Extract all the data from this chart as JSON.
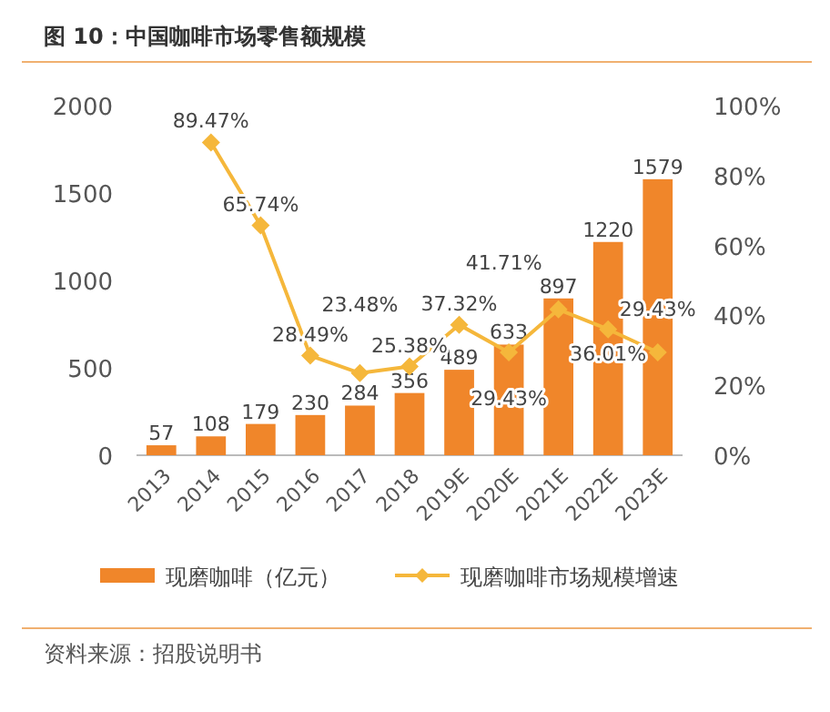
{
  "chart_data": {
    "type": "bar",
    "title": "图 10：中国咖啡市场零售额规模",
    "categories": [
      "2013",
      "2014",
      "2015",
      "2016",
      "2017",
      "2018",
      "2019E",
      "2020E",
      "2021E",
      "2022E",
      "2023E"
    ],
    "series": [
      {
        "name": "现磨咖啡（亿元）",
        "color": "#f0862a",
        "values": [
          57,
          108,
          179,
          230,
          284,
          356,
          489,
          633,
          897,
          1220,
          1579
        ],
        "value_labels": [
          "57",
          "108",
          "179",
          "230",
          "284",
          "356",
          "489",
          "633",
          "897",
          "1220",
          "1579"
        ]
      },
      {
        "name": "现磨咖啡市场规模增速",
        "type": "line",
        "axis": "y2",
        "color": "#f5b73b",
        "marker": "diamond",
        "line_style": "solid",
        "values": [
          null,
          89.47,
          65.74,
          28.49,
          23.48,
          25.38,
          37.32,
          29.43,
          41.71,
          36.01,
          29.43
        ],
        "value_labels": [
          null,
          "89.47%",
          "65.74%",
          "28.49%",
          "23.48%",
          "25.38%",
          "37.32%",
          "29.43%",
          "41.71%",
          "36.01%",
          "29.43%"
        ]
      }
    ],
    "ylim": [
      0,
      2000
    ],
    "yticks": [
      0,
      500,
      1000,
      1500,
      2000
    ],
    "y2lim": [
      0,
      100
    ],
    "y2ticks": [
      {
        "value": 0,
        "label": "0%"
      },
      {
        "value": 20,
        "label": "20%"
      },
      {
        "value": 40,
        "label": "40%"
      },
      {
        "value": 60,
        "label": "60%"
      },
      {
        "value": 80,
        "label": "80%"
      },
      {
        "value": 100,
        "label": "100%"
      }
    ],
    "grid": false,
    "legend": "bottom",
    "annotations": [
      "资料来源：招股说明书"
    ]
  }
}
